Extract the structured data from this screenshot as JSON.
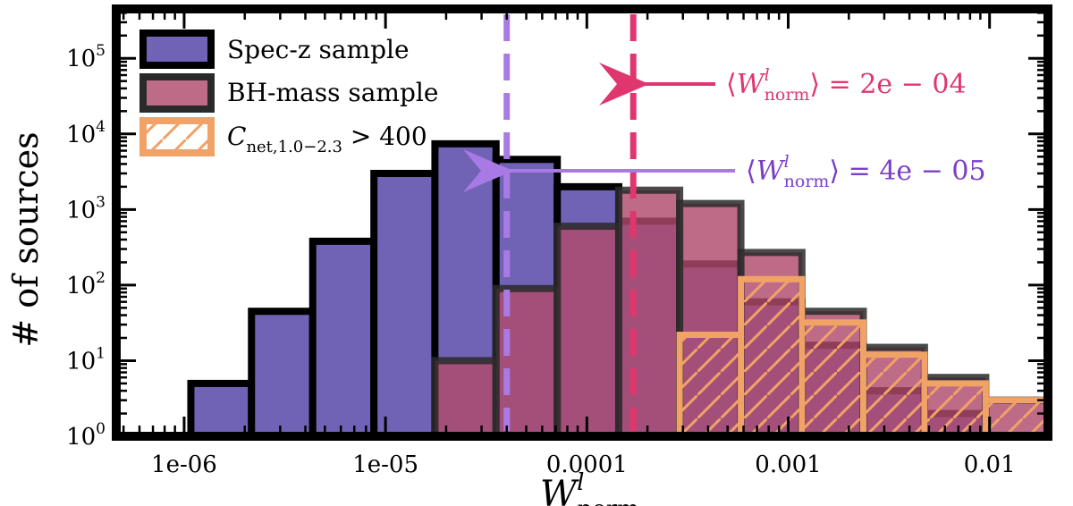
{
  "chart_data": {
    "type": "bar",
    "xlabel_main": "W",
    "xlabel_sup": "l",
    "xlabel_sub": "norm",
    "ylabel": "# of sources",
    "x_scale": "log",
    "y_scale": "log",
    "xlim": [
      4.6e-07,
      0.0195
    ],
    "ylim": [
      1,
      450000
    ],
    "x_ticks": [
      {
        "value": 1e-06,
        "label": "1e-06"
      },
      {
        "value": 1e-05,
        "label": "1e-05"
      },
      {
        "value": 0.0001,
        "label": "0.0001"
      },
      {
        "value": 0.001,
        "label": "0.001"
      },
      {
        "value": 0.01,
        "label": "0.01"
      }
    ],
    "y_ticks": [
      {
        "value": 1,
        "exp": "0"
      },
      {
        "value": 10,
        "exp": "1"
      },
      {
        "value": 100,
        "exp": "2"
      },
      {
        "value": 1000,
        "exp": "3"
      },
      {
        "value": 10000,
        "exp": "4"
      },
      {
        "value": 100000,
        "exp": "5"
      }
    ],
    "series": [
      {
        "name": "Spec-z sample",
        "style": "filled",
        "fill": "#7063b6",
        "edge": "#000000",
        "bins": [
          {
            "x0": 1.08e-06,
            "x1": 2.16e-06,
            "count": 5
          },
          {
            "x0": 2.16e-06,
            "x1": 4.35e-06,
            "count": 45
          },
          {
            "x0": 4.35e-06,
            "x1": 8.76e-06,
            "count": 380
          },
          {
            "x0": 8.76e-06,
            "x1": 1.76e-05,
            "count": 3000
          },
          {
            "x0": 1.76e-05,
            "x1": 3.54e-05,
            "count": 7400
          },
          {
            "x0": 3.54e-05,
            "x1": 7.13e-05,
            "count": 4600
          },
          {
            "x0": 7.13e-05,
            "x1": 0.000144,
            "count": 2000
          },
          {
            "x0": 0.000144,
            "x1": 0.000289,
            "count": 700
          },
          {
            "x0": 0.000289,
            "x1": 0.000582,
            "count": 190
          },
          {
            "x0": 0.000582,
            "x1": 0.00117,
            "count": 60
          },
          {
            "x0": 0.00117,
            "x1": 0.00236,
            "count": 16
          },
          {
            "x0": 0.00236,
            "x1": 0.00475,
            "count": 4
          },
          {
            "x0": 0.00475,
            "x1": 0.00957,
            "count": 2
          }
        ]
      },
      {
        "name": "BH-mass sample",
        "style": "filled",
        "fill": "#b04a6c",
        "fill_opacity": 0.82,
        "edge": "#2a2a2a",
        "bins": [
          {
            "x0": 1.76e-05,
            "x1": 3.54e-05,
            "count": 10
          },
          {
            "x0": 3.54e-05,
            "x1": 7.13e-05,
            "count": 90
          },
          {
            "x0": 7.13e-05,
            "x1": 0.000144,
            "count": 600
          },
          {
            "x0": 0.000144,
            "x1": 0.000289,
            "count": 1800
          },
          {
            "x0": 0.000289,
            "x1": 0.000582,
            "count": 1200
          },
          {
            "x0": 0.000582,
            "x1": 0.00117,
            "count": 270
          },
          {
            "x0": 0.00117,
            "x1": 0.00236,
            "count": 45
          },
          {
            "x0": 0.00236,
            "x1": 0.00475,
            "count": 15
          },
          {
            "x0": 0.00475,
            "x1": 0.00957,
            "count": 6
          },
          {
            "x0": 0.00957,
            "x1": 0.0193,
            "count": 3
          }
        ]
      },
      {
        "name": "C_net,1.0-2.3 > 400",
        "style": "hatched",
        "edge": "#f0a267",
        "bins": [
          {
            "x0": 0.000289,
            "x1": 0.000582,
            "count": 22
          },
          {
            "x0": 0.000582,
            "x1": 0.00117,
            "count": 120
          },
          {
            "x0": 0.00117,
            "x1": 0.00236,
            "count": 32
          },
          {
            "x0": 0.00236,
            "x1": 0.00475,
            "count": 12
          },
          {
            "x0": 0.00475,
            "x1": 0.00957,
            "count": 5
          },
          {
            "x0": 0.00957,
            "x1": 0.0193,
            "count": 3
          }
        ]
      }
    ],
    "means": [
      {
        "value": 4e-05,
        "label_text": "= 4e − 05",
        "color": "#a97ae6",
        "text_color": "#7a3fc8"
      },
      {
        "value": 0.00017,
        "label_text": "= 2e − 04",
        "color": "#e0366e",
        "text_color": "#e0366e"
      }
    ],
    "legend": {
      "placement": "top-left",
      "entries": [
        "Spec-z sample",
        "BH-mass sample",
        "C_net,1.0-2.3 > 400"
      ],
      "label_3_main": "C",
      "label_3_sub": "net,1.0−2.3",
      "label_3_rest": " > 400"
    }
  }
}
